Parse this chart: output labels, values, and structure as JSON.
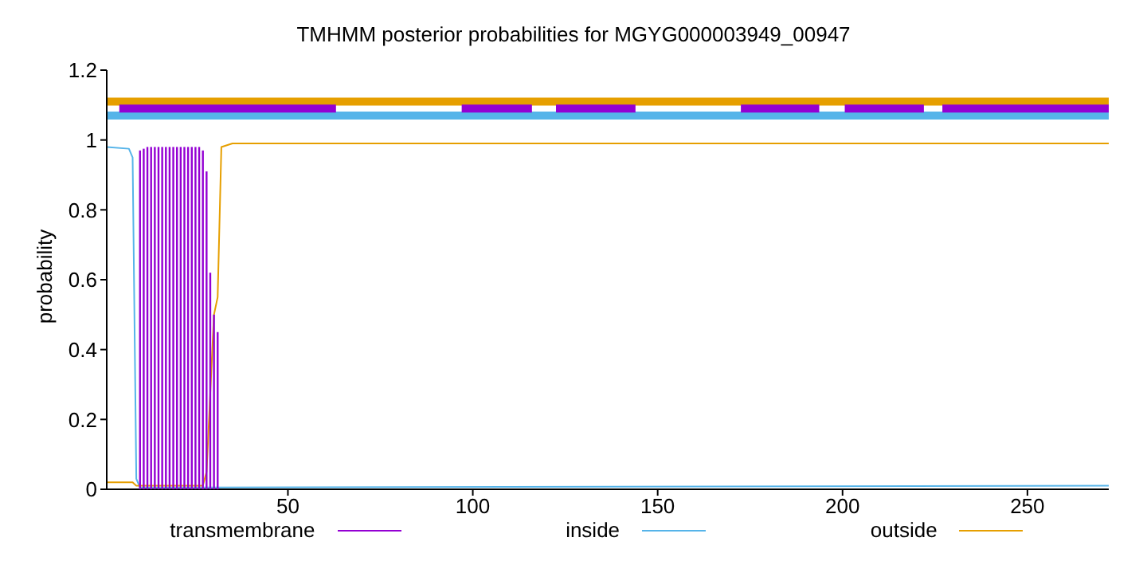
{
  "chart_data": {
    "type": "line",
    "title": "TMHMM posterior probabilities for MGYG000003949_00947",
    "ylabel": "probability",
    "xlim": [
      1,
      272
    ],
    "ylim": [
      0,
      1.2
    ],
    "xticks": [
      50,
      100,
      150,
      200,
      250
    ],
    "yticks": [
      0,
      0.2,
      0.4,
      0.6,
      0.8,
      1,
      1.2
    ],
    "grid": false,
    "legend": "bottom",
    "marker": "none",
    "line_style": "solid",
    "series": [
      {
        "name": "transmembrane",
        "type": "bar",
        "color": "#9400d3",
        "x": [
          10,
          11,
          12,
          13,
          14,
          15,
          16,
          17,
          18,
          19,
          20,
          21,
          22,
          23,
          24,
          25,
          26,
          27,
          28,
          29,
          30,
          31
        ],
        "values": [
          0.97,
          0.975,
          0.98,
          0.98,
          0.98,
          0.98,
          0.98,
          0.98,
          0.98,
          0.98,
          0.98,
          0.98,
          0.98,
          0.98,
          0.98,
          0.98,
          0.98,
          0.97,
          0.91,
          0.62,
          0.5,
          0.45
        ]
      },
      {
        "name": "inside",
        "color": "#56b4e9",
        "x": [
          1,
          7,
          8,
          9,
          10,
          272
        ],
        "values": [
          0.98,
          0.975,
          0.95,
          0.03,
          0.005,
          0.01
        ]
      },
      {
        "name": "outside",
        "color": "#e69f00",
        "x": [
          1,
          8,
          9,
          27,
          28,
          30,
          31,
          32,
          35,
          272
        ],
        "values": [
          0.02,
          0.02,
          0.01,
          0.01,
          0.05,
          0.5,
          0.55,
          0.98,
          0.99,
          0.99
        ]
      },
      {
        "color": "#e69f00",
        "x": [
          1,
          272
        ],
        "values": [
          1.11,
          1.11
        ]
      },
      {
        "color": "#56b4e9",
        "x": [
          1,
          272
        ],
        "values": [
          1.07,
          1.07
        ]
      },
      {
        "color": "#9400d3",
        "x": [
          4.4,
          31,
          44.5,
          45.4,
          63,
          63.5,
          97,
          116,
          116.5,
          122.5,
          144,
          144.5,
          172.5,
          193.7,
          194,
          200.6,
          222,
          222.5,
          227,
          272
        ],
        "values": [
          1.09,
          1.09,
          1.09,
          1.09,
          1.09,
          null,
          1.09,
          1.09,
          null,
          1.09,
          1.09,
          null,
          1.09,
          1.09,
          null,
          1.09,
          1.09,
          null,
          1.09,
          1.09
        ]
      }
    ]
  }
}
